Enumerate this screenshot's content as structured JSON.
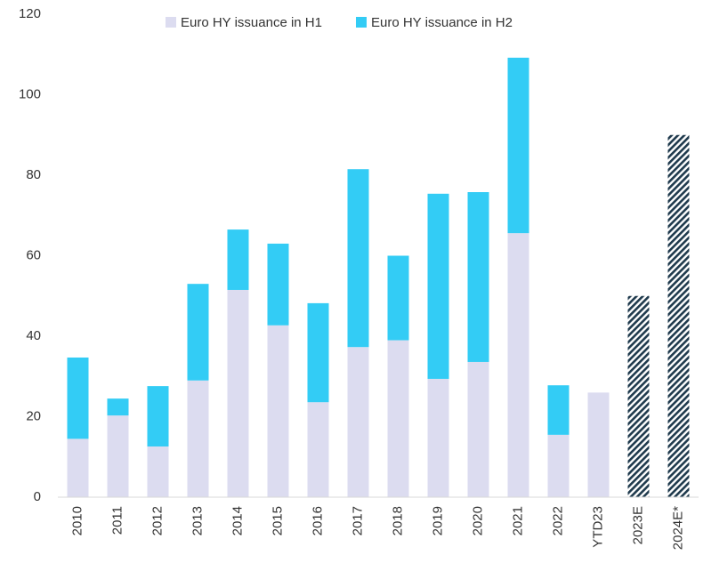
{
  "chart_data": {
    "type": "stacked_bar",
    "categories": [
      "2010",
      "2011",
      "2012",
      "2013",
      "2014",
      "2015",
      "2016",
      "2017",
      "2018",
      "2019",
      "2020",
      "2021",
      "2022",
      "YTD23",
      "2023E",
      "2024E*"
    ],
    "series": [
      {
        "name": "Euro HY issuance in H1",
        "color": "#dcdcf0",
        "values": [
          14.5,
          20.3,
          12.6,
          29,
          51.5,
          42.7,
          23.6,
          37.3,
          39,
          29.4,
          33.6,
          65.6,
          15.5,
          26,
          null,
          null
        ]
      },
      {
        "name": "Euro HY issuance in H2",
        "color": "#33ccf5",
        "values": [
          20.2,
          4.2,
          15,
          24,
          15,
          20.3,
          24.6,
          44.2,
          21,
          46,
          42.2,
          43.6,
          12.3,
          null,
          null,
          null
        ]
      },
      {
        "color": "#1f3a4d",
        "pattern": "hatch",
        "values": [
          null,
          null,
          null,
          null,
          null,
          null,
          null,
          null,
          null,
          null,
          null,
          null,
          null,
          null,
          50,
          90
        ]
      }
    ],
    "ylim": [
      0,
      120
    ],
    "yticks": [
      0,
      20,
      40,
      60,
      80,
      100,
      120
    ],
    "legend": "top"
  }
}
